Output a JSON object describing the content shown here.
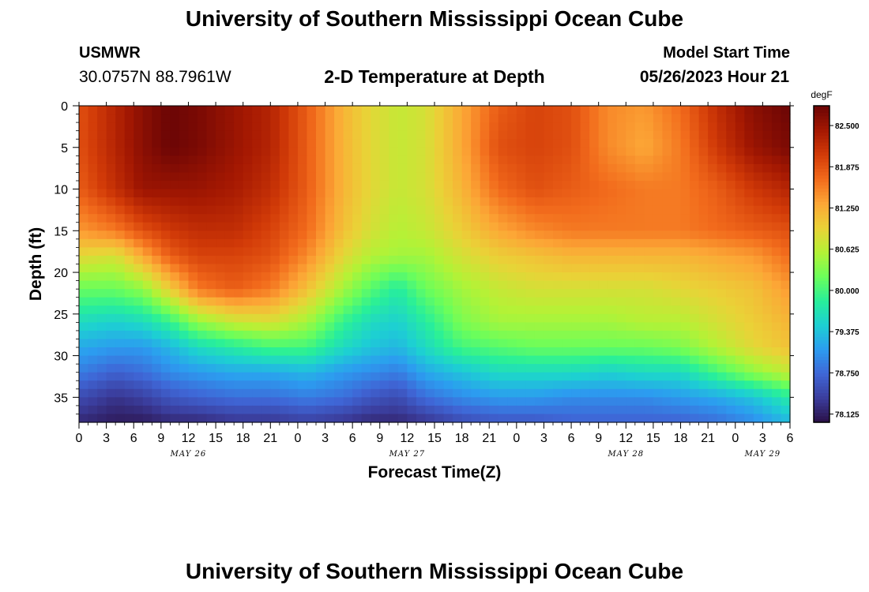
{
  "header": {
    "title": "University of Southern Mississippi Ocean Cube",
    "footer_title": "University of Southern Mississippi Ocean Cube",
    "station_name": "USMWR",
    "station_coords": "30.0757N  88.7961W",
    "plot_title": "2-D Temperature at Depth",
    "model_label": "Model Start Time",
    "model_time": "05/26/2023 Hour 21"
  },
  "chart_data": {
    "type": "heatmap",
    "title": "2-D Temperature at Depth",
    "xlabel": "Forecast Time(Z)",
    "ylabel": "Depth (ft)",
    "x_unit": "hours from 05/26 00Z",
    "xlim": [
      0,
      78
    ],
    "ylim": [
      0,
      38
    ],
    "x_ticks": [
      0,
      3,
      6,
      9,
      12,
      15,
      18,
      21,
      24,
      27,
      30,
      33,
      36,
      39,
      42,
      45,
      48,
      51,
      54,
      57,
      60,
      63,
      66,
      69,
      72,
      75,
      78
    ],
    "x_tick_labels": [
      "0",
      "3",
      "6",
      "9",
      "12",
      "15",
      "18",
      "21",
      "0",
      "3",
      "6",
      "9",
      "12",
      "15",
      "18",
      "21",
      "0",
      "3",
      "6",
      "9",
      "12",
      "15",
      "18",
      "21",
      "0",
      "3",
      "6"
    ],
    "date_labels": [
      {
        "text": "MAY 26",
        "x": 12
      },
      {
        "text": "MAY 27",
        "x": 36
      },
      {
        "text": "MAY 28",
        "x": 60
      },
      {
        "text": "MAY 29",
        "x": 75
      }
    ],
    "y_ticks": [
      0,
      5,
      10,
      15,
      20,
      25,
      30,
      35
    ],
    "y_tick_labels": [
      "0",
      "5",
      "10",
      "15",
      "20",
      "25",
      "30",
      "35"
    ],
    "colorbar": {
      "unit": "degF",
      "min": 78.0,
      "max": 82.8,
      "ticks": [
        78.125,
        78.75,
        79.375,
        80.0,
        80.625,
        81.25,
        81.875,
        82.5
      ],
      "tick_labels": [
        "78.125",
        "78.750",
        "79.375",
        "80.000",
        "80.625",
        "81.250",
        "81.875",
        "82.500"
      ],
      "colors": [
        "#2a0f45",
        "#3b3d9c",
        "#3f66d6",
        "#2c9cf0",
        "#1dcfd3",
        "#28ef9a",
        "#6cfe5a",
        "#b4f236",
        "#ead237",
        "#fca636",
        "#f26b1c",
        "#d23b08",
        "#a41802",
        "#6b0505"
      ]
    },
    "x_nodes": [
      0,
      4,
      7,
      10,
      13,
      17,
      21,
      25,
      29,
      32,
      35,
      38,
      42,
      46,
      50,
      54,
      58,
      62,
      66,
      70,
      74,
      78
    ],
    "y_nodes": [
      0,
      5,
      10,
      15,
      18,
      22,
      26,
      29,
      32,
      35,
      38
    ],
    "temperature_grid": [
      [
        81.9,
        82.3,
        82.6,
        82.8,
        82.7,
        82.5,
        82.3,
        81.8,
        81.2,
        80.9,
        80.7,
        80.8,
        81.3,
        81.8,
        82.0,
        81.9,
        81.5,
        81.4,
        81.7,
        82.2,
        82.6,
        82.8
      ],
      [
        81.9,
        82.3,
        82.6,
        82.8,
        82.7,
        82.5,
        82.3,
        81.8,
        81.2,
        80.9,
        80.7,
        80.8,
        81.3,
        81.9,
        82.0,
        81.9,
        81.5,
        81.3,
        81.6,
        82.1,
        82.5,
        82.7
      ],
      [
        81.8,
        82.2,
        82.5,
        82.5,
        82.5,
        82.4,
        82.2,
        81.8,
        81.2,
        80.9,
        80.7,
        80.8,
        81.2,
        81.7,
        81.9,
        81.8,
        81.7,
        81.6,
        81.6,
        81.8,
        82.1,
        82.3
      ],
      [
        81.4,
        81.6,
        81.9,
        82.1,
        82.2,
        82.2,
        82.0,
        81.7,
        81.1,
        80.8,
        80.6,
        80.7,
        81.0,
        81.3,
        81.5,
        81.6,
        81.6,
        81.6,
        81.6,
        81.7,
        81.8,
        81.9
      ],
      [
        80.9,
        80.8,
        81.3,
        81.8,
        82.0,
        82.0,
        81.9,
        81.5,
        80.9,
        80.6,
        80.5,
        80.5,
        80.8,
        81.0,
        81.1,
        81.2,
        81.2,
        81.2,
        81.2,
        81.3,
        81.4,
        81.7
      ],
      [
        80.2,
        80.2,
        80.4,
        81.0,
        81.6,
        81.8,
        81.6,
        81.1,
        80.5,
        80.1,
        79.8,
        80.2,
        80.5,
        80.7,
        80.8,
        80.8,
        80.8,
        80.8,
        80.9,
        81.0,
        81.1,
        81.4
      ],
      [
        79.6,
        79.5,
        79.6,
        79.9,
        80.4,
        80.7,
        80.8,
        80.5,
        79.9,
        79.6,
        79.5,
        79.8,
        80.3,
        80.5,
        80.5,
        80.5,
        80.5,
        80.6,
        80.6,
        80.8,
        81.0,
        81.2
      ],
      [
        79.2,
        79.1,
        79.1,
        79.3,
        79.6,
        79.8,
        80.0,
        80.0,
        79.6,
        79.4,
        79.3,
        79.6,
        80.0,
        80.1,
        80.2,
        80.2,
        80.2,
        80.2,
        80.3,
        80.6,
        80.9,
        81.1
      ],
      [
        78.9,
        78.7,
        78.8,
        79.0,
        79.1,
        79.2,
        79.2,
        79.3,
        79.1,
        79.0,
        78.9,
        79.2,
        79.4,
        79.6,
        79.6,
        79.6,
        79.5,
        79.6,
        79.6,
        80.0,
        80.4,
        80.7
      ],
      [
        78.5,
        78.3,
        78.4,
        78.6,
        78.7,
        78.8,
        78.8,
        78.9,
        78.8,
        78.6,
        78.5,
        78.8,
        79.0,
        79.1,
        79.1,
        79.0,
        79.0,
        79.0,
        79.1,
        79.2,
        79.4,
        79.8
      ],
      [
        78.2,
        78.1,
        78.1,
        78.2,
        78.2,
        78.3,
        78.3,
        78.4,
        78.3,
        78.2,
        78.2,
        78.3,
        78.5,
        78.6,
        78.6,
        78.7,
        78.7,
        78.7,
        78.7,
        78.8,
        79.0,
        79.3
      ]
    ]
  }
}
